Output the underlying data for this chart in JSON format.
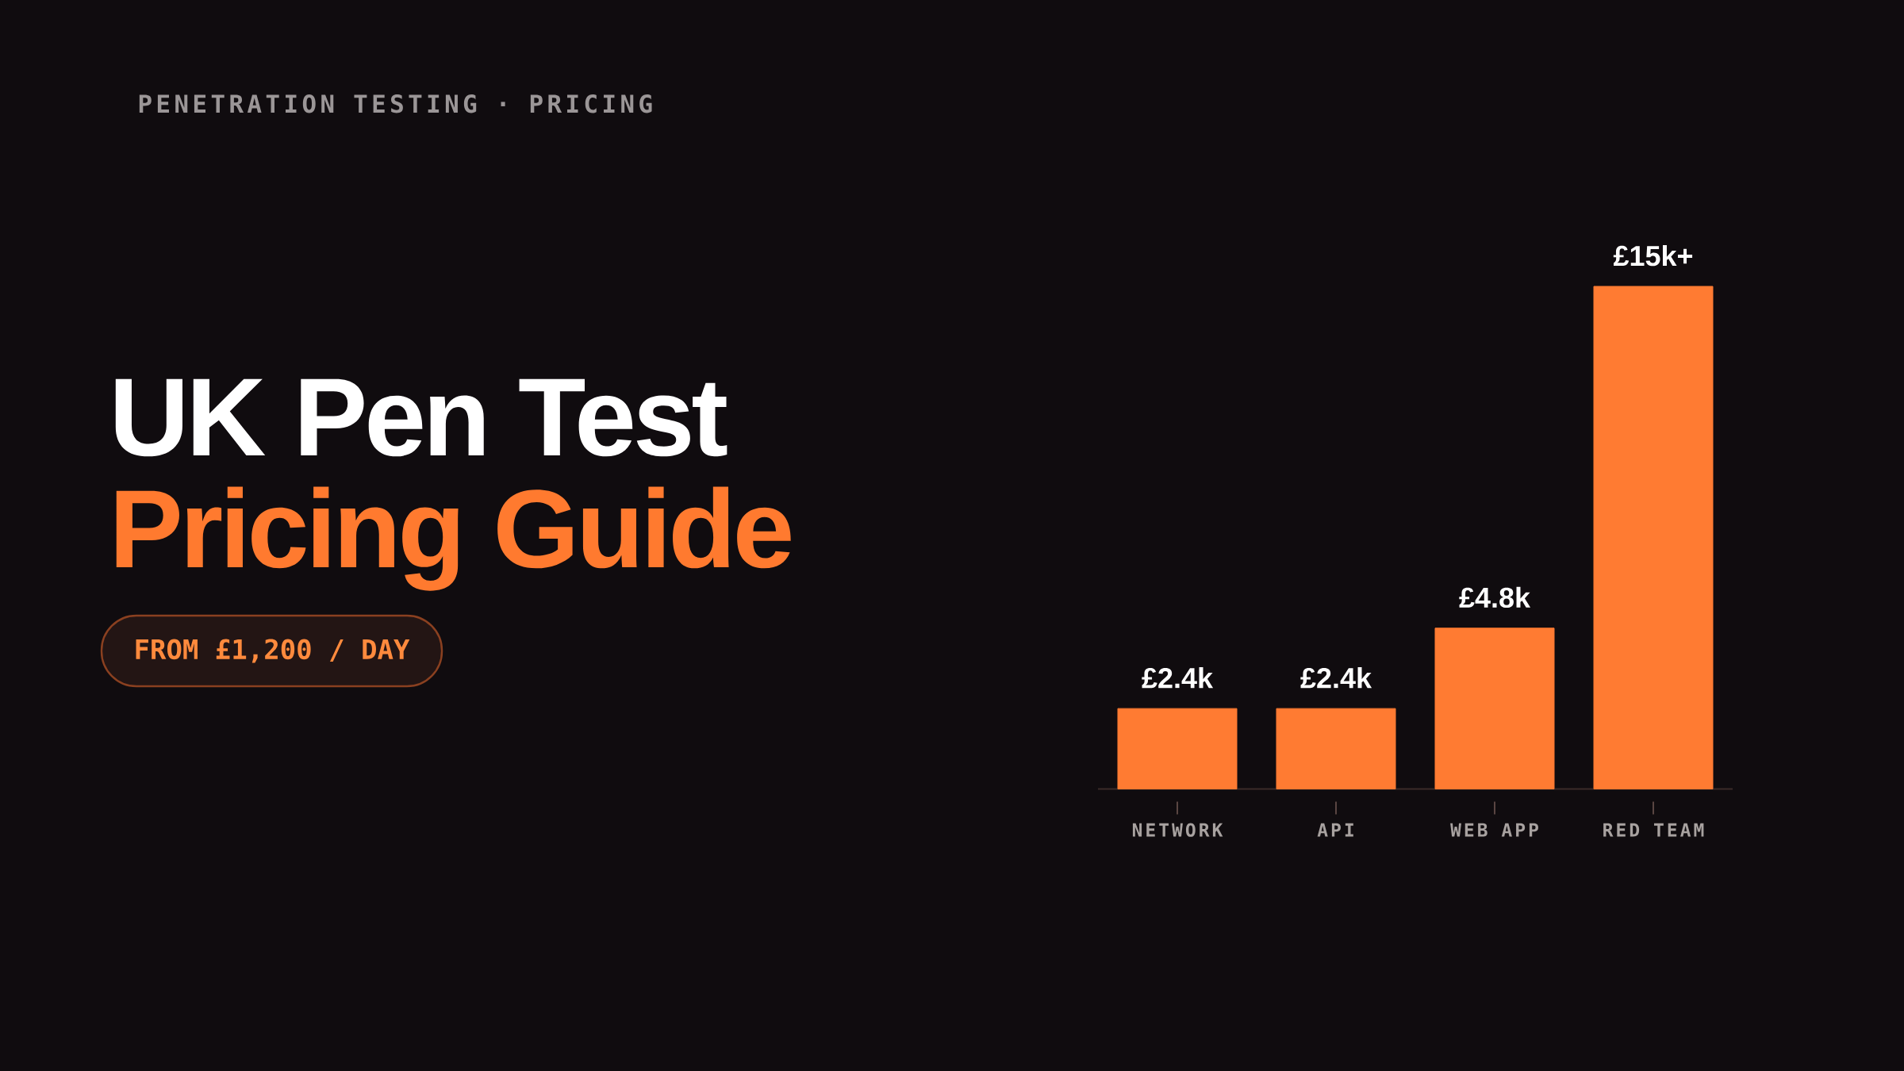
{
  "chart_data": {
    "type": "bar",
    "title": "UK Pen Test",
    "subtitle": "Pricing Guide",
    "annotations": [
      "PENETRATION TESTING · PRICING",
      "FROM £1,200 / DAY"
    ],
    "categories": [
      "NETWORK",
      "API",
      "WEB APP",
      "RED TEAM"
    ],
    "values": [
      2400,
      2400,
      4800,
      15000
    ],
    "value_labels": [
      "£2.4k",
      "£2.4k",
      "£4.8k",
      "£15k+"
    ],
    "color": "#ff7b32",
    "ylim": [
      0,
      15000
    ],
    "tick_labels": "x"
  }
}
